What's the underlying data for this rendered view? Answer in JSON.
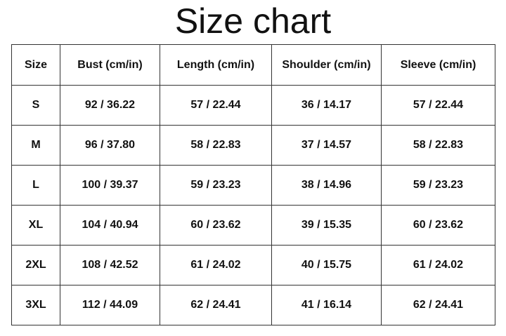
{
  "title": "Size chart",
  "table": {
    "header": [
      "Size",
      "Bust (cm/in)",
      "Length (cm/in)",
      "Shoulder (cm/in)",
      "Sleeve (cm/in)"
    ],
    "rows": [
      [
        "S",
        "92 / 36.22",
        "57 / 22.44",
        "36 / 14.17",
        "57 / 22.44"
      ],
      [
        "M",
        "96 / 37.80",
        "58 / 22.83",
        "37 / 14.57",
        "58 / 22.83"
      ],
      [
        "L",
        "100 / 39.37",
        "59 / 23.23",
        "38 / 14.96",
        "59 / 23.23"
      ],
      [
        "XL",
        "104 / 40.94",
        "60 / 23.62",
        "39 / 15.35",
        "60 / 23.62"
      ],
      [
        "2XL",
        "108 / 42.52",
        "61 / 24.02",
        "40 / 15.75",
        "61 / 24.02"
      ],
      [
        "3XL",
        "112 / 44.09",
        "62 / 24.41",
        "41 / 16.14",
        "62 / 24.41"
      ]
    ]
  }
}
